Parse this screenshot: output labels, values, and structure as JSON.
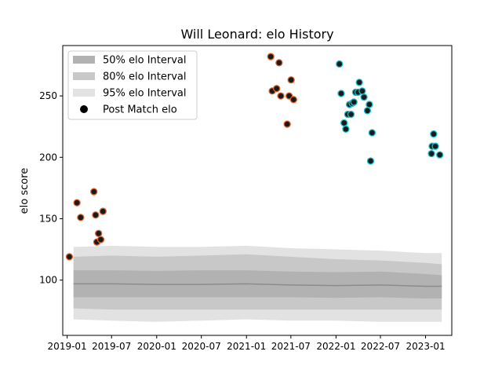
{
  "chart_data": {
    "type": "scatter",
    "title": "Will Leonard: elo History",
    "xlabel": "",
    "ylabel": "elo score",
    "x_range": [
      "2018-12-14",
      "2023-04-18"
    ],
    "ylim": [
      55,
      291
    ],
    "x_ticks": [
      "2019-01",
      "2019-07",
      "2020-01",
      "2020-07",
      "2021-01",
      "2021-07",
      "2022-01",
      "2022-07",
      "2023-01"
    ],
    "y_ticks": [
      100,
      150,
      200,
      250
    ],
    "grid": false,
    "legend": {
      "placement": "top-left",
      "entries": [
        {
          "label": "50% elo Interval",
          "color": "#b2b2b2"
        },
        {
          "label": "80% elo Interval",
          "color": "#c8c8c8"
        },
        {
          "label": "95% elo Interval",
          "color": "#e2e2e2"
        },
        {
          "label": "Post Match elo",
          "color": "#000000"
        }
      ]
    },
    "bands": {
      "x": [
        "2019-01-27",
        "2019-07-01",
        "2020-01-01",
        "2020-07-01",
        "2021-01-01",
        "2021-07-01",
        "2022-01-01",
        "2022-07-01",
        "2023-01-01",
        "2023-03-08"
      ],
      "median": [
        97,
        97,
        96.5,
        96.5,
        97,
        96,
        95.5,
        96,
        95,
        95
      ],
      "p50": {
        "low": [
          86,
          86,
          86,
          86,
          86,
          86,
          85.5,
          86,
          85,
          85
        ],
        "high": [
          108,
          108,
          107.5,
          108,
          108,
          107,
          106.5,
          107,
          105,
          104
        ]
      },
      "p80": {
        "low": [
          77,
          76,
          76,
          76,
          76,
          76,
          76,
          76,
          76,
          76
        ],
        "high": [
          119,
          120,
          119,
          120,
          121,
          119,
          117,
          116,
          114,
          113
        ]
      },
      "p95": {
        "low": [
          68,
          67,
          66,
          67,
          68,
          67,
          67,
          66,
          66,
          66
        ],
        "high": [
          127,
          128,
          127,
          127,
          128,
          126,
          125,
          124,
          122,
          122
        ]
      }
    },
    "series": [
      {
        "color": "#e0622a",
        "points": [
          {
            "x": "2019-01-10",
            "y": 119
          },
          {
            "x": "2019-02-10",
            "y": 163
          },
          {
            "x": "2019-02-25",
            "y": 151
          },
          {
            "x": "2019-04-20",
            "y": 172
          },
          {
            "x": "2019-04-27",
            "y": 153
          },
          {
            "x": "2019-05-02",
            "y": 131
          },
          {
            "x": "2019-05-09",
            "y": 138
          },
          {
            "x": "2019-05-18",
            "y": 133
          },
          {
            "x": "2019-05-27",
            "y": 156
          }
        ]
      },
      {
        "color": "#e0622a",
        "points": [
          {
            "x": "2021-04-10",
            "y": 282
          },
          {
            "x": "2021-04-16",
            "y": 254
          },
          {
            "x": "2021-05-04",
            "y": 256
          },
          {
            "x": "2021-05-14",
            "y": 277
          },
          {
            "x": "2021-05-21",
            "y": 250
          },
          {
            "x": "2021-06-16",
            "y": 227
          },
          {
            "x": "2021-06-24",
            "y": 250
          },
          {
            "x": "2021-07-02",
            "y": 263
          },
          {
            "x": "2021-07-12",
            "y": 247
          }
        ]
      },
      {
        "color": "#17becf",
        "points": [
          {
            "x": "2022-01-15",
            "y": 276
          },
          {
            "x": "2022-01-22",
            "y": 252
          },
          {
            "x": "2022-02-03",
            "y": 228
          },
          {
            "x": "2022-02-10",
            "y": 223
          },
          {
            "x": "2022-02-18",
            "y": 235
          },
          {
            "x": "2022-02-25",
            "y": 243
          },
          {
            "x": "2022-03-03",
            "y": 235
          },
          {
            "x": "2022-03-08",
            "y": 244
          },
          {
            "x": "2022-03-15",
            "y": 245
          },
          {
            "x": "2022-03-22",
            "y": 253
          },
          {
            "x": "2022-04-01",
            "y": 253
          },
          {
            "x": "2022-04-06",
            "y": 261
          },
          {
            "x": "2022-04-18",
            "y": 254
          },
          {
            "x": "2022-04-25",
            "y": 249
          },
          {
            "x": "2022-05-09",
            "y": 238
          },
          {
            "x": "2022-05-17",
            "y": 243
          },
          {
            "x": "2022-05-22",
            "y": 197
          },
          {
            "x": "2022-05-28",
            "y": 220
          }
        ]
      },
      {
        "color": "#17becf",
        "points": [
          {
            "x": "2023-01-25",
            "y": 203
          },
          {
            "x": "2023-01-28",
            "y": 209
          },
          {
            "x": "2023-02-03",
            "y": 219
          },
          {
            "x": "2023-02-10",
            "y": 209
          },
          {
            "x": "2023-02-28",
            "y": 202
          }
        ]
      }
    ]
  }
}
